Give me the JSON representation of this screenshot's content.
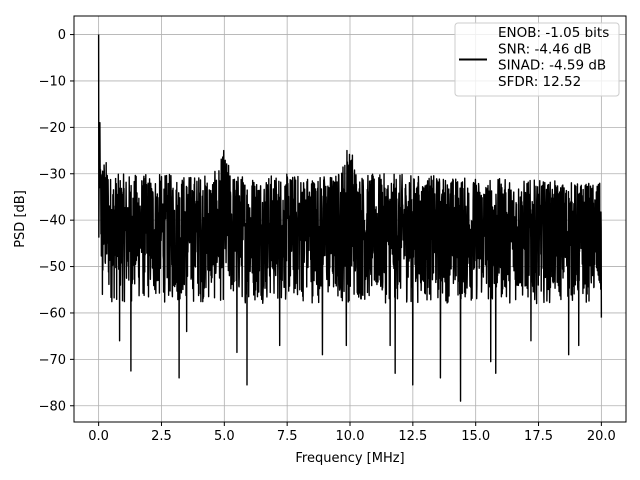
{
  "chart_data": {
    "type": "line",
    "title": "",
    "xlabel": "Frequency [MHz]",
    "ylabel": "PSD [dB]",
    "xlim": [
      -0.98,
      20.98
    ],
    "ylim": [
      -83.5,
      4.0
    ],
    "xticks": [
      0.0,
      2.5,
      5.0,
      7.5,
      10.0,
      12.5,
      15.0,
      17.5,
      20.0
    ],
    "xtick_labels": [
      "0.0",
      "2.5",
      "5.0",
      "7.5",
      "10.0",
      "12.5",
      "15.0",
      "17.5",
      "20.0"
    ],
    "yticks": [
      0,
      -10,
      -20,
      -30,
      -40,
      -50,
      -60,
      -70,
      -80
    ],
    "ytick_labels": [
      "0",
      "−10",
      "−20",
      "−30",
      "−40",
      "−50",
      "−60",
      "−70",
      "−80"
    ],
    "grid": true,
    "legend_position": "top-right",
    "series": [
      {
        "name": "ENOB: -1.05 bits\nSNR: -4.46 dB\nSINAD: -4.59 dB\nSFDR: 12.52",
        "color": "#000000",
        "x_range": [
          0.0,
          20.0
        ],
        "noise_floor_top": -30,
        "noise_floor_bottom": -58,
        "peaks": [
          {
            "x": 0.0,
            "y": 0.0
          },
          {
            "x": 0.05,
            "y": -19
          },
          {
            "x": 4.98,
            "y": -25
          },
          {
            "x": 9.88,
            "y": -25
          },
          {
            "x": 10.1,
            "y": -26
          }
        ],
        "dips": [
          {
            "x": 0.15,
            "y": -56
          },
          {
            "x": 0.83,
            "y": -66
          },
          {
            "x": 1.28,
            "y": -72.5
          },
          {
            "x": 3.2,
            "y": -74
          },
          {
            "x": 3.5,
            "y": -64
          },
          {
            "x": 5.5,
            "y": -68.5
          },
          {
            "x": 5.9,
            "y": -75.5
          },
          {
            "x": 7.2,
            "y": -67
          },
          {
            "x": 8.9,
            "y": -69
          },
          {
            "x": 9.85,
            "y": -67
          },
          {
            "x": 11.6,
            "y": -67
          },
          {
            "x": 11.8,
            "y": -73
          },
          {
            "x": 12.5,
            "y": -75.5
          },
          {
            "x": 13.6,
            "y": -74
          },
          {
            "x": 14.4,
            "y": -79
          },
          {
            "x": 15.6,
            "y": -70.5
          },
          {
            "x": 15.8,
            "y": -73
          },
          {
            "x": 17.2,
            "y": -66
          },
          {
            "x": 18.7,
            "y": -69
          },
          {
            "x": 19.1,
            "y": -67
          },
          {
            "x": 20.0,
            "y": -61
          }
        ]
      }
    ]
  }
}
